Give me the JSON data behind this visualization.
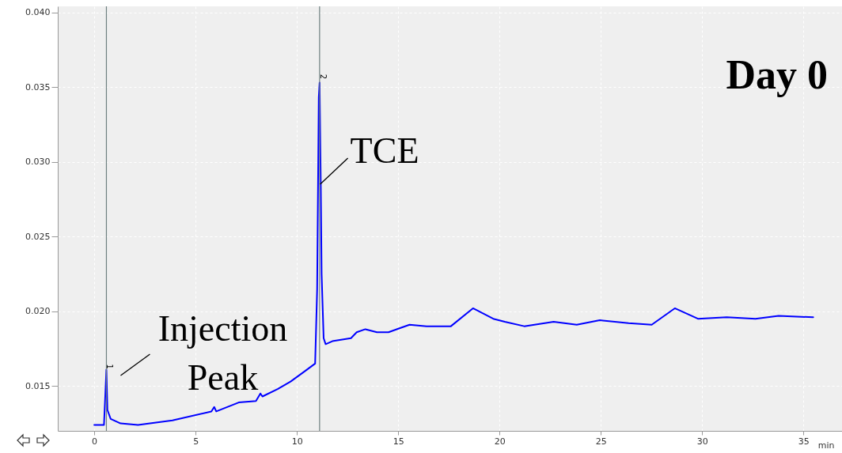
{
  "chart_data": {
    "type": "line",
    "xlabel": "min",
    "xlim": [
      -1.8,
      36.9
    ],
    "xticks": [
      0,
      5,
      10,
      15,
      20,
      25,
      30,
      35
    ],
    "ylim": [
      0.012,
      0.0404
    ],
    "yticks": [
      {
        "value": 0.015,
        "label": "0.015"
      },
      {
        "value": 0.02,
        "label": "0.020"
      },
      {
        "value": 0.025,
        "label": "0.025"
      },
      {
        "value": 0.03,
        "label": "0.030"
      },
      {
        "value": 0.035,
        "label": "0.035"
      },
      {
        "value": 0.04,
        "label": "0.040"
      }
    ],
    "grid": true,
    "marker": "none",
    "line_style": "solid",
    "series": [
      {
        "color": "#0000ff",
        "x": [
          0,
          0.48,
          0.53,
          0.6,
          0.65,
          0.81,
          1.3,
          2.16,
          3.86,
          5.78,
          5.92,
          6.02,
          7.13,
          7.98,
          8.2,
          8.3,
          9.05,
          9.69,
          10.4,
          10.9,
          11.0,
          11.08,
          11.12,
          11.18,
          11.22,
          11.32,
          11.42,
          11.75,
          12.67,
          12.95,
          13.38,
          13.95,
          14.52,
          15.56,
          16.4,
          17.6,
          18.69,
          19.69,
          20.26,
          21.22,
          22.67,
          23.81,
          24.95,
          26.37,
          27.51,
          28.65,
          29.79,
          31.21,
          32.63,
          33.77,
          35.48
        ],
        "values": [
          0.0124,
          0.0124,
          0.0139,
          0.0161,
          0.0134,
          0.0128,
          0.0125,
          0.0124,
          0.0127,
          0.0133,
          0.0136,
          0.0133,
          0.0139,
          0.014,
          0.0145,
          0.0143,
          0.0148,
          0.0153,
          0.016,
          0.0165,
          0.0215,
          0.0343,
          0.0353,
          0.0283,
          0.0225,
          0.0182,
          0.0178,
          0.018,
          0.0182,
          0.0186,
          0.0188,
          0.0186,
          0.0186,
          0.0191,
          0.019,
          0.019,
          0.0202,
          0.0195,
          0.0193,
          0.019,
          0.0193,
          0.0191,
          0.0194,
          0.0192,
          0.0191,
          0.0202,
          0.0195,
          0.0196,
          0.0195,
          0.0197,
          0.0196
        ]
      }
    ],
    "ref_lines": [
      {
        "axis": "x",
        "value": 0.6,
        "color": "#6e8080"
      },
      {
        "axis": "x",
        "value": 11.12,
        "color": "#6e8080"
      }
    ],
    "annotations": [
      {
        "text": "1",
        "x": 0.6,
        "y": 0.0163
      },
      {
        "text": "2",
        "x": 11.12,
        "y": 0.0357
      },
      {
        "text": "Injection Peak",
        "x": 0.6,
        "y": 0.0157
      },
      {
        "text": "TCE",
        "x": 11.15,
        "y": 0.0285
      },
      "Day 0"
    ]
  }
}
